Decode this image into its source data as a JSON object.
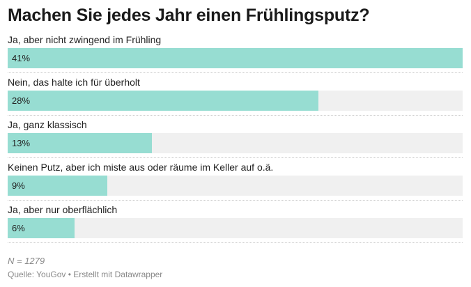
{
  "chart_data": {
    "type": "bar",
    "title": "Machen Sie jedes Jahr einen Frühlingsputz?",
    "categories": [
      "Ja, aber nicht zwingend im Frühling",
      "Nein, das halte ich für überholt",
      "Ja, ganz klassisch",
      "Keinen Putz, aber ich miste aus oder räume im Keller auf o.ä.",
      "Ja, aber nur oberflächlich"
    ],
    "values": [
      41,
      28,
      13,
      9,
      6
    ],
    "value_labels": [
      "41%",
      "28%",
      "13%",
      "9%",
      "6%"
    ],
    "ylim": [
      0,
      41
    ],
    "orientation": "horizontal",
    "bar_color": "#97ddd2",
    "track_color": "#f0f0f0",
    "note": "N = 1279",
    "source": "Quelle: YouGov • Erstellt mit Datawrapper"
  }
}
